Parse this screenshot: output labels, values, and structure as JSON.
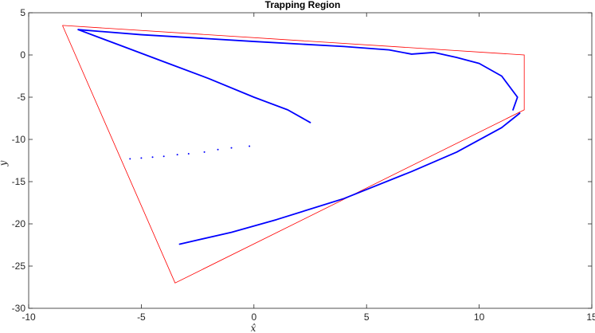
{
  "chart_data": {
    "type": "scatter",
    "title": "Trapping Region",
    "xlabel": "x̂",
    "ylabel": "ŷ",
    "xlim": [
      -10,
      15
    ],
    "ylim": [
      -30,
      5
    ],
    "xticks": [
      -10,
      -5,
      0,
      5,
      10,
      15
    ],
    "yticks": [
      -30,
      -25,
      -20,
      -15,
      -10,
      -5,
      0,
      5
    ],
    "grid": false,
    "colors": {
      "region": "#ff0000",
      "points": "#0000ff",
      "axes": "#262626"
    },
    "series": [
      {
        "type": "polygon",
        "points": [
          [
            -8.5,
            3.5
          ],
          [
            12.0,
            0.0
          ],
          [
            12.0,
            -6.5
          ],
          [
            -3.5,
            -27.0
          ],
          [
            -8.5,
            3.5
          ]
        ]
      },
      {
        "type": "curve",
        "points": [
          [
            -7.8,
            3.0
          ],
          [
            -5.0,
            2.4
          ],
          [
            0.0,
            1.6
          ],
          [
            4.0,
            1.0
          ],
          [
            6.0,
            0.6
          ],
          [
            7.0,
            0.1
          ],
          [
            8.0,
            0.3
          ],
          [
            9.0,
            -0.3
          ],
          [
            10.0,
            -1.0
          ],
          [
            11.0,
            -2.5
          ],
          [
            11.7,
            -5.0
          ],
          [
            11.5,
            -6.5
          ]
        ]
      },
      {
        "type": "curve",
        "points": [
          [
            -7.8,
            3.0
          ],
          [
            -6.0,
            1.2
          ],
          [
            -4.0,
            -0.8
          ],
          [
            -2.0,
            -2.8
          ],
          [
            0.0,
            -5.0
          ],
          [
            1.5,
            -6.5
          ],
          [
            2.5,
            -8.0
          ]
        ]
      },
      {
        "type": "curve",
        "points": [
          [
            -3.3,
            -22.4
          ],
          [
            -1.0,
            -21.0
          ],
          [
            1.0,
            -19.5
          ],
          [
            4.0,
            -17.0
          ],
          [
            7.0,
            -13.8
          ],
          [
            9.0,
            -11.5
          ],
          [
            11.0,
            -8.6
          ],
          [
            11.8,
            -6.9
          ]
        ]
      },
      {
        "type": "scatter",
        "points": [
          [
            -5.5,
            -12.3
          ],
          [
            -5.0,
            -12.2
          ],
          [
            -4.5,
            -12.1
          ],
          [
            -4.0,
            -12.0
          ],
          [
            -3.4,
            -11.8
          ],
          [
            -2.9,
            -11.7
          ],
          [
            -2.2,
            -11.5
          ],
          [
            -1.6,
            -11.2
          ],
          [
            -1.0,
            -11.0
          ],
          [
            -0.2,
            -10.8
          ]
        ]
      }
    ]
  }
}
